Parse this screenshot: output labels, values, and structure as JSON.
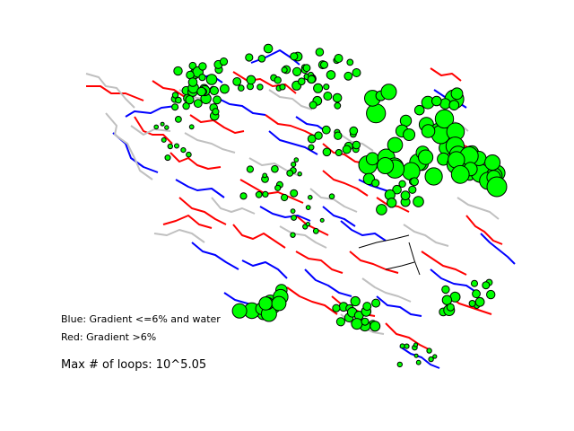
{
  "figure": {
    "legend": {
      "blue_label": "Blue: Gradient <=6% and water",
      "red_label": "Red: Gradient >6%"
    },
    "loops_label": "Max # of loops: 10^5.05"
  },
  "colors": {
    "blue_edge": "#0000ff",
    "red_edge": "#ff0000",
    "grey_edge": "#c0c0c0",
    "black_edge": "#000000",
    "node_fill": "#00ff00",
    "node_stroke": "#000000",
    "background": "#ffffff"
  }
}
